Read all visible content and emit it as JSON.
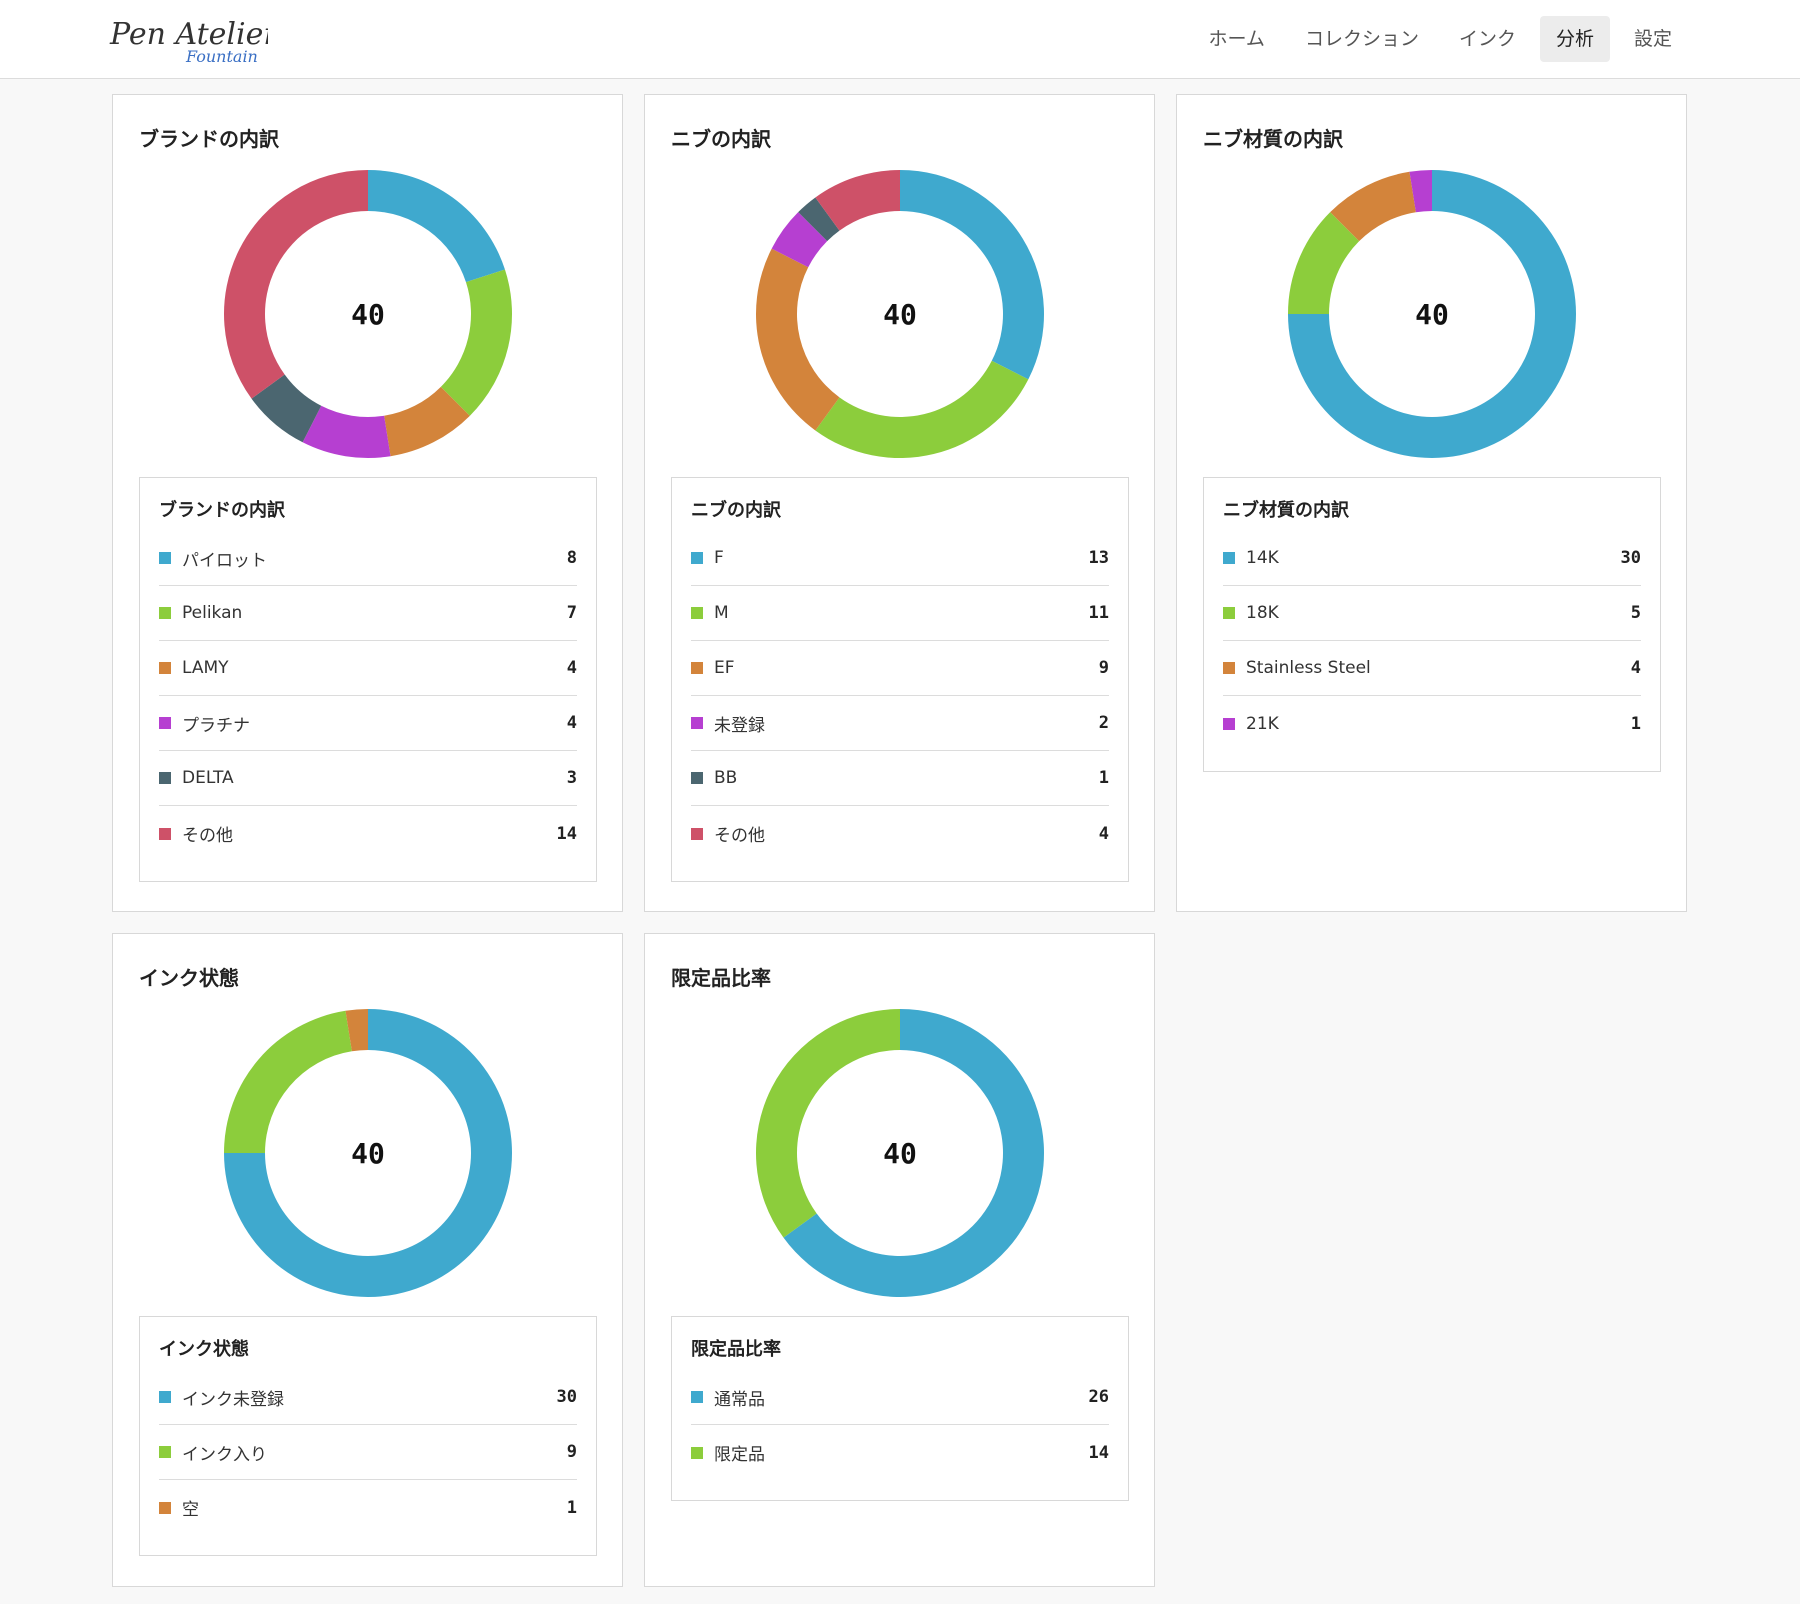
{
  "header": {
    "logo_line1": "Pen Atelier",
    "logo_line2": "Fountain",
    "nav": [
      {
        "label": "ホーム",
        "active": false
      },
      {
        "label": "コレクション",
        "active": false
      },
      {
        "label": "インク",
        "active": false
      },
      {
        "label": "分析",
        "active": true
      },
      {
        "label": "設定",
        "active": false
      }
    ]
  },
  "colors": {
    "blue": "#3fa9ce",
    "green": "#8ccd3c",
    "orange": "#d3843b",
    "purple": "#b63fd1",
    "slate": "#4b6670",
    "red": "#ce5168"
  },
  "chart_data": [
    {
      "type": "pie",
      "title": "ブランドの内訳",
      "legend_title": "ブランドの内訳",
      "total": "40",
      "categories": [
        "パイロット",
        "Pelikan",
        "LAMY",
        "プラチナ",
        "DELTA",
        "その他"
      ],
      "values": [
        8,
        7,
        4,
        4,
        3,
        14
      ],
      "colors": [
        "#3fa9ce",
        "#8ccd3c",
        "#d3843b",
        "#b63fd1",
        "#4b6670",
        "#ce5168"
      ]
    },
    {
      "type": "pie",
      "title": "ニブの内訳",
      "legend_title": "ニブの内訳",
      "total": "40",
      "categories": [
        "F",
        "M",
        "EF",
        "未登録",
        "BB",
        "その他"
      ],
      "values": [
        13,
        11,
        9,
        2,
        1,
        4
      ],
      "colors": [
        "#3fa9ce",
        "#8ccd3c",
        "#d3843b",
        "#b63fd1",
        "#4b6670",
        "#ce5168"
      ]
    },
    {
      "type": "pie",
      "title": "ニブ材質の内訳",
      "legend_title": "ニブ材質の内訳",
      "total": "40",
      "categories": [
        "14K",
        "18K",
        "Stainless Steel",
        "21K"
      ],
      "values": [
        30,
        5,
        4,
        1
      ],
      "colors": [
        "#3fa9ce",
        "#8ccd3c",
        "#d3843b",
        "#b63fd1"
      ]
    },
    {
      "type": "pie",
      "title": "インク状態",
      "legend_title": "インク状態",
      "total": "40",
      "categories": [
        "インク未登録",
        "インク入り",
        "空"
      ],
      "values": [
        30,
        9,
        1
      ],
      "colors": [
        "#3fa9ce",
        "#8ccd3c",
        "#d3843b"
      ]
    },
    {
      "type": "pie",
      "title": "限定品比率",
      "legend_title": "限定品比率",
      "total": "40",
      "categories": [
        "通常品",
        "限定品"
      ],
      "values": [
        26,
        14
      ],
      "colors": [
        "#3fa9ce",
        "#8ccd3c"
      ]
    }
  ]
}
